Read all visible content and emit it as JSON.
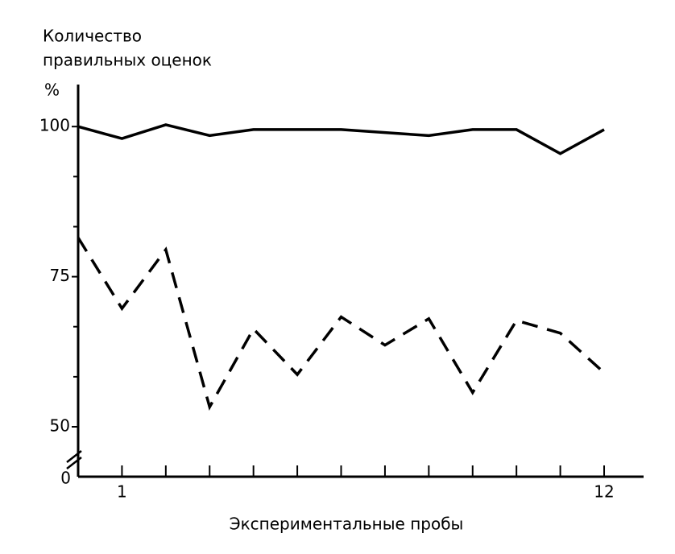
{
  "chart_data": {
    "type": "line",
    "title_lines": [
      "Количество",
      "правильных  оценок"
    ],
    "y_unit": "%",
    "xlabel": "Экспериментальные пробы",
    "x": [
      0,
      1,
      2,
      3,
      4,
      5,
      6,
      7,
      8,
      9,
      10,
      11,
      12
    ],
    "series": [
      {
        "style": "solid",
        "color": "#000000",
        "values": [
          100,
          98,
          100.3,
          98.5,
          99.5,
          99.5,
          99.5,
          99,
          98.5,
          99.5,
          99.5,
          95.5,
          99.5
        ]
      },
      {
        "style": "dashed",
        "color": "#000000",
        "values": [
          81.5,
          69.7,
          79.5,
          53.3,
          66.3,
          58.7,
          68.3,
          63.6,
          68,
          55.7,
          67.7,
          65.6,
          59
        ]
      }
    ],
    "xlim": [
      0,
      12.9
    ],
    "xticks": [
      1,
      12
    ],
    "minor_xticks": [
      2,
      3,
      4,
      5,
      6,
      7,
      8,
      9,
      10,
      11
    ],
    "ylim": [
      50,
      107
    ],
    "yticks": [
      50,
      75,
      100
    ],
    "minor_yticks": [
      58.33,
      66.67,
      83.33,
      91.67
    ],
    "y_origin": 0,
    "axis_break": true
  }
}
